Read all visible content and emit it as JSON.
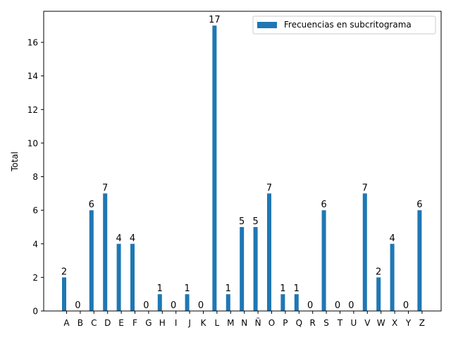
{
  "chart_data": {
    "type": "bar",
    "title": "",
    "xlabel": "",
    "ylabel": "Total",
    "ylim": [
      0,
      17.85
    ],
    "yticks": [
      "0",
      "2",
      "4",
      "6",
      "8",
      "10",
      "12",
      "14",
      "16"
    ],
    "legend": {
      "label": "Frecuencias en subcritograma",
      "placement": "top-right"
    },
    "grid": false,
    "bar_color": "#1f77b4",
    "categories": [
      "A",
      "B",
      "C",
      "D",
      "E",
      "F",
      "G",
      "H",
      "I",
      "J",
      "K",
      "L",
      "M",
      "N",
      "Ñ",
      "O",
      "P",
      "Q",
      "R",
      "S",
      "T",
      "U",
      "V",
      "W",
      "X",
      "Y",
      "Z"
    ],
    "values": [
      2,
      0,
      6,
      7,
      4,
      4,
      0,
      1,
      0,
      1,
      0,
      17,
      1,
      5,
      5,
      7,
      1,
      1,
      0,
      6,
      0,
      0,
      7,
      2,
      4,
      0,
      6
    ],
    "data_labels": [
      "2",
      "0",
      "6",
      "7",
      "4",
      "4",
      "0",
      "1",
      "0",
      "1",
      "0",
      "17",
      "1",
      "5",
      "5",
      "7",
      "1",
      "1",
      "0",
      "6",
      "0",
      "0",
      "7",
      "2",
      "4",
      "0",
      "6"
    ]
  }
}
